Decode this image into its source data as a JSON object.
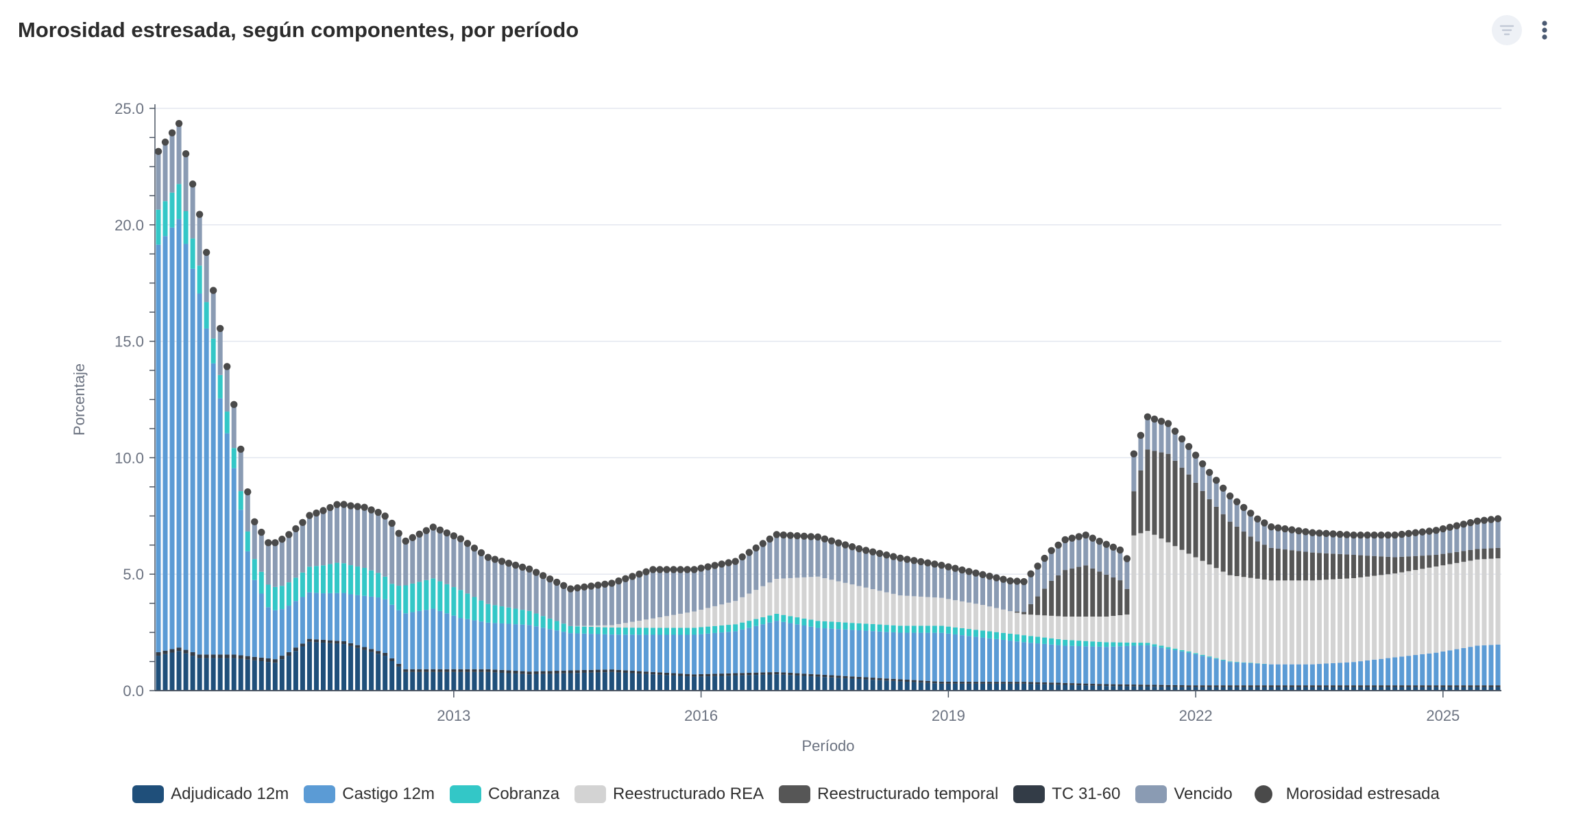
{
  "header": {
    "title": "Morosidad estresada, según componentes, por período",
    "filter_icon": "filter-icon",
    "menu_icon": "kebab-menu-icon"
  },
  "chart_data": {
    "type": "bar",
    "stacked": true,
    "title": "Morosidad estresada, según componentes, por período",
    "xlabel": "Período",
    "ylabel": "Porcentaje",
    "ylim": [
      0,
      25
    ],
    "yticks": [
      "0.0",
      "5.0",
      "10.0",
      "15.0",
      "20.0",
      "25.0"
    ],
    "xticks": [
      {
        "label": "2013",
        "index": 43
      },
      {
        "label": "2016",
        "index": 79
      },
      {
        "label": "2019",
        "index": 115
      },
      {
        "label": "2022",
        "index": 151
      },
      {
        "label": "2025",
        "index": 187
      }
    ],
    "period": "monthly, 2009-07 to 2025-10 (index 0 = 2009-07)",
    "grid": true,
    "legend_position": "bottom",
    "anchors": {
      "Adjudicado 12m": [
        [
          0,
          1.5
        ],
        [
          3,
          1.7
        ],
        [
          6,
          1.4
        ],
        [
          11,
          1.4
        ],
        [
          14,
          1.3
        ],
        [
          17,
          1.2
        ],
        [
          19,
          1.5
        ],
        [
          22,
          2.1
        ],
        [
          27,
          2.0
        ],
        [
          33,
          1.5
        ],
        [
          36,
          0.8
        ],
        [
          48,
          0.8
        ],
        [
          54,
          0.7
        ],
        [
          66,
          0.8
        ],
        [
          78,
          0.6
        ],
        [
          90,
          0.7
        ],
        [
          102,
          0.5
        ],
        [
          114,
          0.3
        ],
        [
          126,
          0.3
        ],
        [
          138,
          0.2
        ],
        [
          150,
          0.15
        ],
        [
          162,
          0.15
        ],
        [
          174,
          0.15
        ],
        [
          186,
          0.15
        ],
        [
          195,
          0.15
        ]
      ],
      "Castigo 12m": [
        [
          0,
          17.5
        ],
        [
          3,
          18.4
        ],
        [
          6,
          15.5
        ],
        [
          8,
          12.5
        ],
        [
          11,
          8.0
        ],
        [
          13,
          4.5
        ],
        [
          14,
          3.3
        ],
        [
          16,
          2.2
        ],
        [
          18,
          2.0
        ],
        [
          20,
          2.0
        ],
        [
          24,
          2.0
        ],
        [
          28,
          2.1
        ],
        [
          32,
          2.3
        ],
        [
          35,
          2.3
        ],
        [
          36,
          2.4
        ],
        [
          40,
          2.6
        ],
        [
          44,
          2.2
        ],
        [
          48,
          2.0
        ],
        [
          54,
          2.0
        ],
        [
          60,
          1.6
        ],
        [
          66,
          1.5
        ],
        [
          72,
          1.6
        ],
        [
          78,
          1.7
        ],
        [
          84,
          1.8
        ],
        [
          90,
          2.2
        ],
        [
          96,
          2.0
        ],
        [
          102,
          2.0
        ],
        [
          108,
          2.0
        ],
        [
          114,
          2.1
        ],
        [
          120,
          1.9
        ],
        [
          126,
          1.7
        ],
        [
          132,
          1.6
        ],
        [
          138,
          1.6
        ],
        [
          144,
          1.7
        ],
        [
          150,
          1.4
        ],
        [
          156,
          1.0
        ],
        [
          162,
          0.9
        ],
        [
          168,
          0.9
        ],
        [
          174,
          1.0
        ],
        [
          180,
          1.2
        ],
        [
          186,
          1.4
        ],
        [
          192,
          1.7
        ],
        [
          195,
          1.75
        ]
      ],
      "Cobranza": [
        [
          0,
          1.5
        ],
        [
          3,
          1.5
        ],
        [
          6,
          1.2
        ],
        [
          9,
          1.0
        ],
        [
          12,
          0.8
        ],
        [
          14,
          0.9
        ],
        [
          17,
          1.0
        ],
        [
          20,
          1.0
        ],
        [
          22,
          1.1
        ],
        [
          26,
          1.3
        ],
        [
          30,
          1.2
        ],
        [
          34,
          0.9
        ],
        [
          36,
          1.2
        ],
        [
          40,
          1.3
        ],
        [
          44,
          1.2
        ],
        [
          48,
          0.8
        ],
        [
          54,
          0.6
        ],
        [
          60,
          0.3
        ],
        [
          66,
          0.3
        ],
        [
          72,
          0.3
        ],
        [
          78,
          0.3
        ],
        [
          90,
          0.3
        ],
        [
          102,
          0.3
        ],
        [
          114,
          0.3
        ],
        [
          126,
          0.3
        ],
        [
          138,
          0.2
        ],
        [
          144,
          0.1
        ],
        [
          150,
          0.05
        ],
        [
          162,
          0.0
        ],
        [
          195,
          0.0
        ]
      ],
      "Reestructurado REA": [
        [
          0,
          0.0
        ],
        [
          60,
          0.0
        ],
        [
          66,
          0.1
        ],
        [
          72,
          0.4
        ],
        [
          84,
          1.0
        ],
        [
          90,
          1.5
        ],
        [
          96,
          1.9
        ],
        [
          102,
          1.6
        ],
        [
          108,
          1.3
        ],
        [
          114,
          1.2
        ],
        [
          120,
          1.1
        ],
        [
          126,
          0.9
        ],
        [
          132,
          1.0
        ],
        [
          138,
          1.1
        ],
        [
          141,
          1.2
        ],
        [
          142,
          4.6
        ],
        [
          144,
          4.8
        ],
        [
          150,
          4.2
        ],
        [
          156,
          3.7
        ],
        [
          162,
          3.6
        ],
        [
          168,
          3.6
        ],
        [
          174,
          3.6
        ],
        [
          180,
          3.6
        ],
        [
          186,
          3.7
        ],
        [
          192,
          3.7
        ],
        [
          195,
          3.7
        ]
      ],
      "Reestructurado temporal": [
        [
          0,
          0.0
        ],
        [
          124,
          0.0
        ],
        [
          126,
          0.1
        ],
        [
          128,
          0.8
        ],
        [
          130,
          1.5
        ],
        [
          132,
          2.0
        ],
        [
          135,
          2.2
        ],
        [
          138,
          1.8
        ],
        [
          140,
          1.5
        ],
        [
          141,
          1.1
        ],
        [
          142,
          1.9
        ],
        [
          144,
          3.5
        ],
        [
          147,
          3.8
        ],
        [
          150,
          3.4
        ],
        [
          153,
          2.8
        ],
        [
          156,
          2.3
        ],
        [
          160,
          1.6
        ],
        [
          162,
          1.4
        ],
        [
          168,
          1.2
        ],
        [
          174,
          1.0
        ],
        [
          180,
          0.7
        ],
        [
          186,
          0.5
        ],
        [
          192,
          0.45
        ],
        [
          195,
          0.45
        ]
      ],
      "TC 31-60": [
        [
          0,
          0.15
        ],
        [
          20,
          0.15
        ],
        [
          21,
          0.12
        ],
        [
          60,
          0.12
        ],
        [
          72,
          0.1
        ],
        [
          90,
          0.1
        ],
        [
          120,
          0.08
        ],
        [
          150,
          0.08
        ],
        [
          195,
          0.08
        ]
      ],
      "Vencido": [
        [
          0,
          2.5
        ],
        [
          3,
          2.6
        ],
        [
          6,
          2.2
        ],
        [
          9,
          2.0
        ],
        [
          12,
          1.8
        ],
        [
          14,
          1.6
        ],
        [
          18,
          2.0
        ],
        [
          22,
          2.2
        ],
        [
          26,
          2.5
        ],
        [
          30,
          2.6
        ],
        [
          34,
          2.6
        ],
        [
          36,
          1.9
        ],
        [
          40,
          2.2
        ],
        [
          44,
          2.2
        ],
        [
          48,
          2.0
        ],
        [
          54,
          1.8
        ],
        [
          60,
          1.6
        ],
        [
          66,
          1.8
        ],
        [
          72,
          2.1
        ],
        [
          78,
          1.8
        ],
        [
          84,
          1.7
        ],
        [
          90,
          1.9
        ],
        [
          96,
          1.7
        ],
        [
          102,
          1.6
        ],
        [
          108,
          1.6
        ],
        [
          114,
          1.4
        ],
        [
          120,
          1.3
        ],
        [
          126,
          1.3
        ],
        [
          132,
          1.3
        ],
        [
          138,
          1.3
        ],
        [
          141,
          1.3
        ],
        [
          142,
          1.6
        ],
        [
          144,
          1.4
        ],
        [
          150,
          1.2
        ],
        [
          156,
          1.1
        ],
        [
          162,
          0.9
        ],
        [
          168,
          0.85
        ],
        [
          174,
          0.85
        ],
        [
          180,
          0.95
        ],
        [
          186,
          1.05
        ],
        [
          192,
          1.2
        ],
        [
          195,
          1.25
        ]
      ]
    },
    "series": [
      {
        "name": "Adjudicado 12m",
        "color": "#1f4f7a"
      },
      {
        "name": "Castigo 12m",
        "color": "#5b9bd5"
      },
      {
        "name": "Cobranza",
        "color": "#33c7c7"
      },
      {
        "name": "Reestructurado REA",
        "color": "#d3d3d3"
      },
      {
        "name": "Reestructurado temporal",
        "color": "#565656"
      },
      {
        "name": "TC 31-60",
        "color": "#333c47"
      },
      {
        "name": "Vencido",
        "color": "#8a9bb3"
      },
      {
        "name": "Morosidad estresada",
        "color": "#4a4a4a",
        "marker": "dot",
        "note": "sum of components"
      }
    ]
  }
}
